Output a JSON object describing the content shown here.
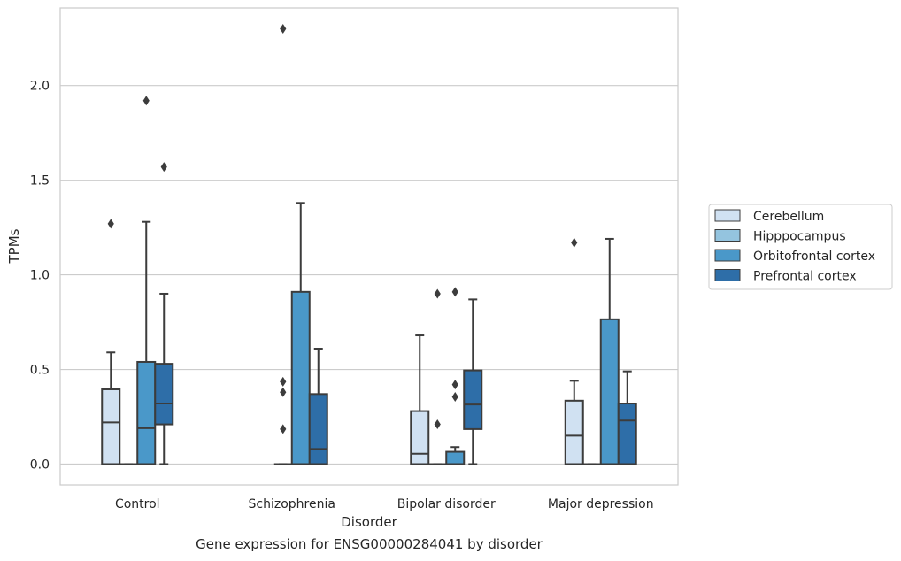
{
  "caption": "Gene expression for ENSG00000284041 by disorder",
  "chart_data": {
    "type": "box",
    "xlabel": "Disorder",
    "ylabel": "TPMs",
    "ylim": [
      -0.11,
      2.41
    ],
    "yticks": [
      0.0,
      0.5,
      1.0,
      1.5,
      2.0
    ],
    "ytick_labels": [
      "0.0",
      "0.5",
      "1.0",
      "1.5",
      "2.0"
    ],
    "grid": "horizontal",
    "legend_position": "right",
    "categories": [
      "Control",
      "Schizophrenia",
      "Bipolar disorder",
      "Major depression"
    ],
    "series": [
      {
        "name": "Cerebellum",
        "color": "#d0e1f2",
        "boxes": [
          {
            "whislo": 0.0,
            "q1": 0.0,
            "med": 0.22,
            "q3": 0.395,
            "whishi": 0.59,
            "fliers": [
              1.27
            ]
          },
          null,
          {
            "whislo": 0.0,
            "q1": 0.0,
            "med": 0.055,
            "q3": 0.28,
            "whishi": 0.68,
            "fliers": []
          },
          {
            "whislo": 0.0,
            "q1": 0.0,
            "med": 0.15,
            "q3": 0.335,
            "whishi": 0.44,
            "fliers": [
              1.17
            ]
          }
        ]
      },
      {
        "name": "Hipppocampus",
        "color": "#94c4df",
        "boxes": [
          {
            "whislo": 0.0,
            "q1": 0.0,
            "med": 0.0,
            "q3": 0.0,
            "whishi": 0.0,
            "fliers": []
          },
          {
            "whislo": 0.0,
            "q1": 0.0,
            "med": 0.0,
            "q3": 0.0,
            "whishi": 0.0,
            "fliers": [
              2.3,
              0.435,
              0.38,
              0.185
            ]
          },
          {
            "whislo": 0.0,
            "q1": 0.0,
            "med": 0.0,
            "q3": 0.0,
            "whishi": 0.0,
            "fliers": [
              0.9,
              0.21
            ]
          },
          {
            "whislo": 0.0,
            "q1": 0.0,
            "med": 0.0,
            "q3": 0.0,
            "whishi": 0.0,
            "fliers": []
          }
        ]
      },
      {
        "name": "Orbitofrontal cortex",
        "color": "#4a98c9",
        "boxes": [
          {
            "whislo": 0.0,
            "q1": 0.0,
            "med": 0.19,
            "q3": 0.54,
            "whishi": 1.28,
            "fliers": [
              1.92
            ]
          },
          {
            "whislo": 0.0,
            "q1": 0.0,
            "med": 0.0,
            "q3": 0.91,
            "whishi": 1.38,
            "fliers": []
          },
          {
            "whislo": 0.0,
            "q1": 0.0,
            "med": 0.0,
            "q3": 0.065,
            "whishi": 0.09,
            "fliers": [
              0.91,
              0.42,
              0.355
            ]
          },
          {
            "whislo": 0.0,
            "q1": 0.0,
            "med": 0.0,
            "q3": 0.765,
            "whishi": 1.19,
            "fliers": []
          }
        ]
      },
      {
        "name": "Prefrontal cortex",
        "color": "#2e6ea8",
        "boxes": [
          {
            "whislo": 0.0,
            "q1": 0.21,
            "med": 0.32,
            "q3": 0.53,
            "whishi": 0.9,
            "fliers": [
              1.57
            ]
          },
          {
            "whislo": 0.0,
            "q1": 0.0,
            "med": 0.08,
            "q3": 0.37,
            "whishi": 0.61,
            "fliers": []
          },
          {
            "whislo": 0.0,
            "q1": 0.185,
            "med": 0.315,
            "q3": 0.495,
            "whishi": 0.87,
            "fliers": []
          },
          {
            "whislo": 0.0,
            "q1": 0.0,
            "med": 0.23,
            "q3": 0.32,
            "whishi": 0.49,
            "fliers": []
          }
        ]
      }
    ]
  }
}
